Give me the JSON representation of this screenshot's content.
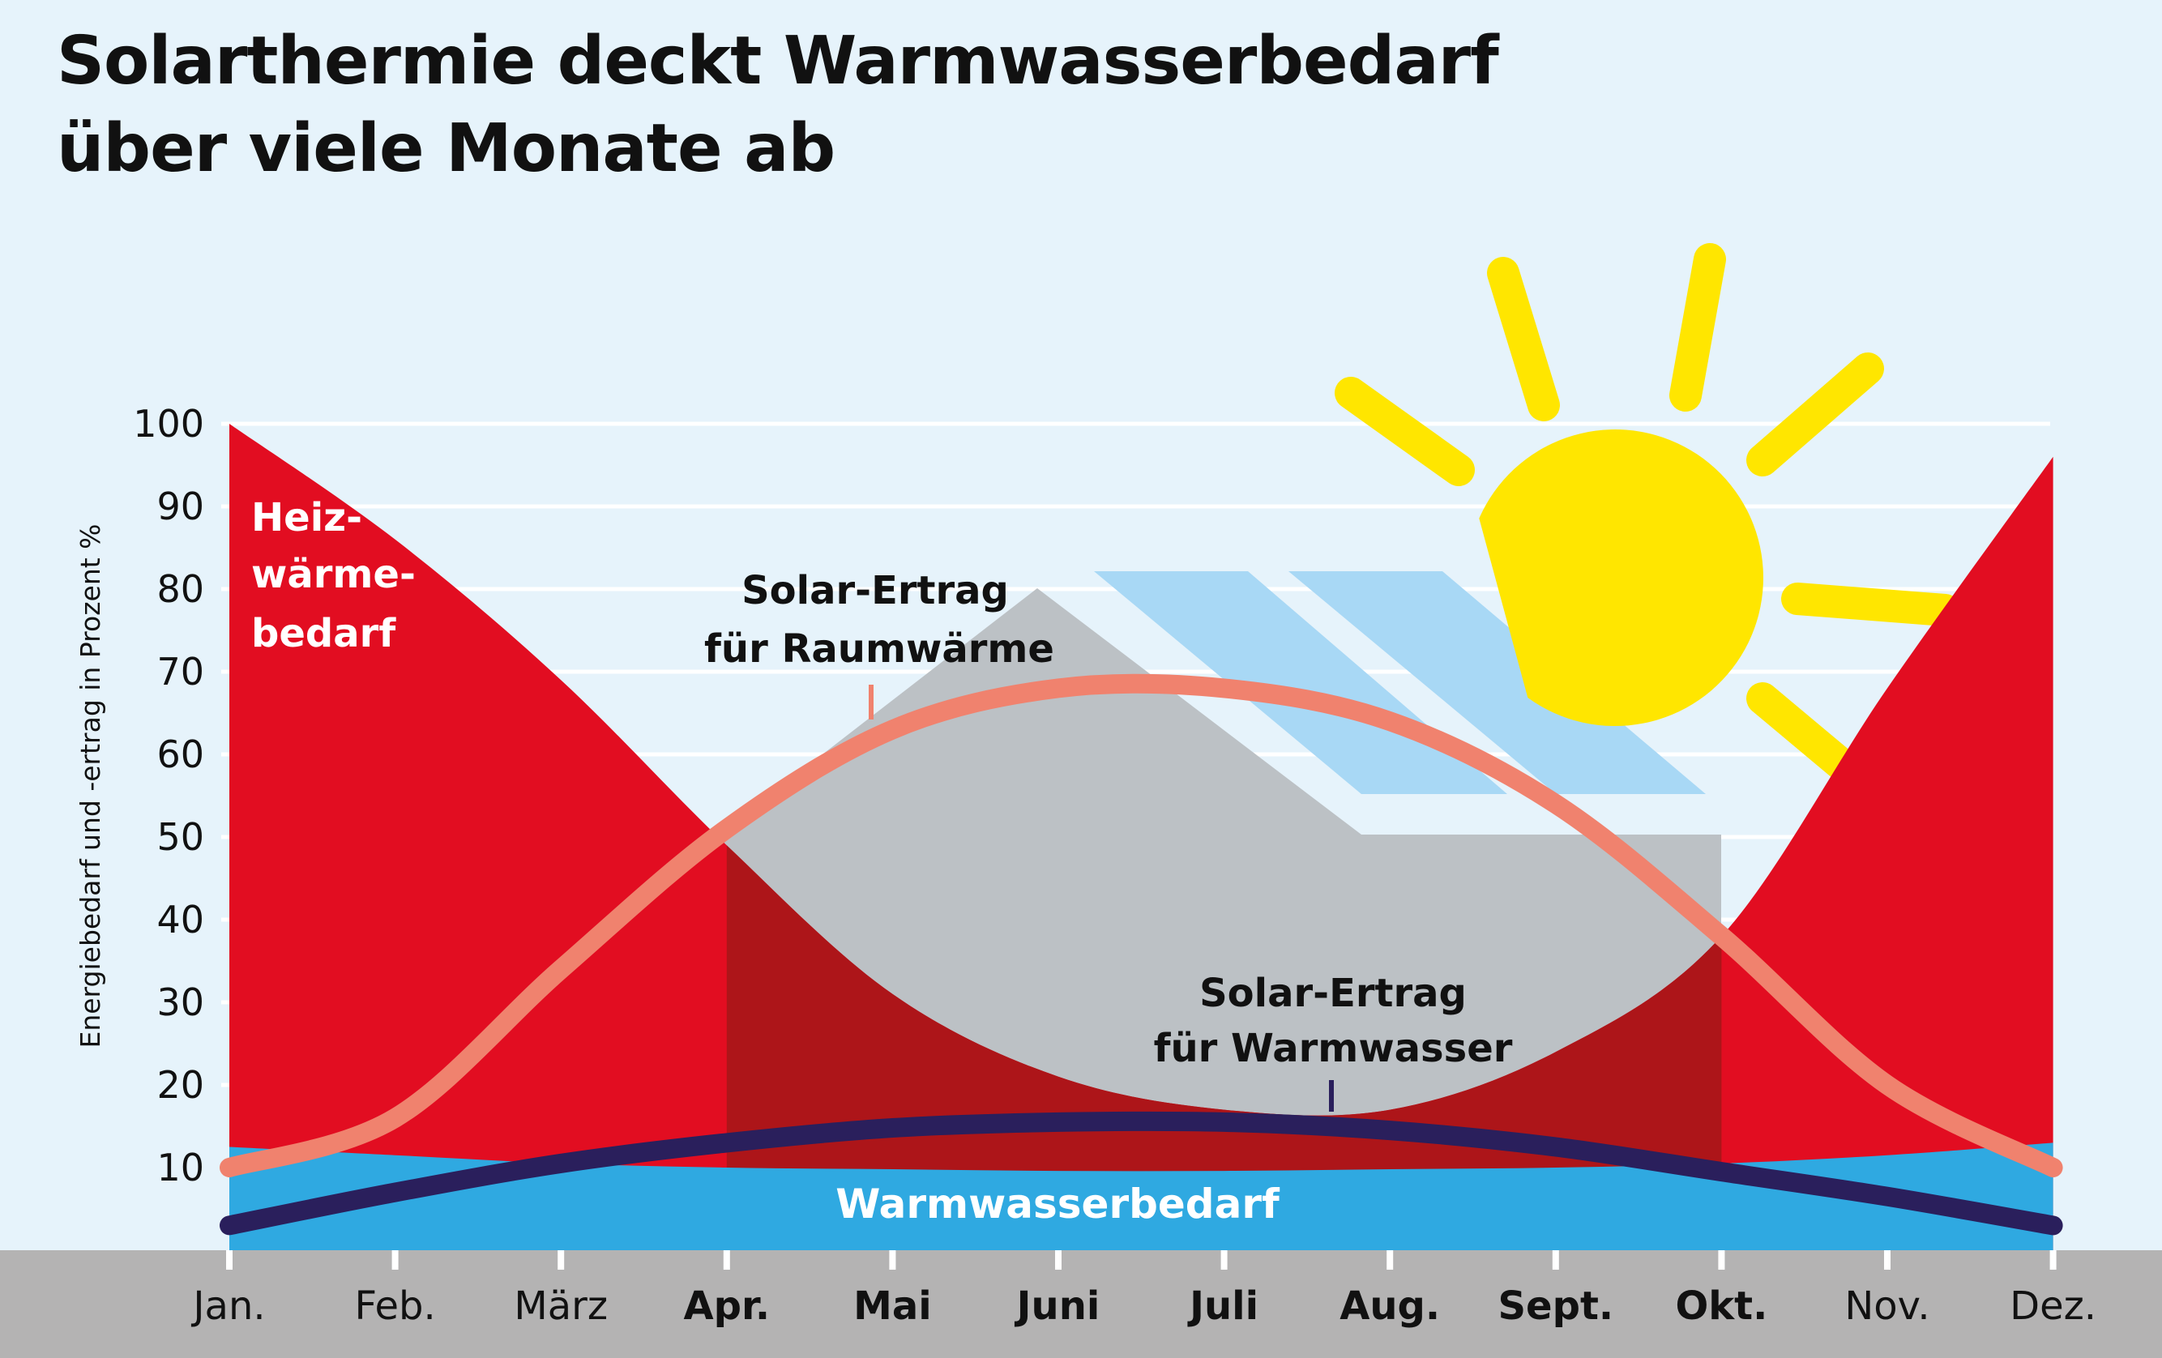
{
  "title": {
    "line1": "Solarthermie deckt Warmwasserbedarf",
    "line2": "über viele Monate ab"
  },
  "colors": {
    "background": "#e6f3fb",
    "heizwaerme": "#e20d21",
    "heizwaerme_covered": "#ad1519",
    "warmwasser": "#2fa9e1",
    "solar_raumwaerme_line": "#f0826e",
    "solar_warmwasser_line": "#2a1f5c",
    "house": "#bcc1c5",
    "sun": "#ffe600",
    "panels": "#a8d8f5",
    "axis_band": "#b4b3b3"
  },
  "labels": {
    "heizwaerme": [
      "Heiz-",
      "wärme-",
      "bedarf"
    ],
    "solar_raumwaerme": [
      "Solar-Ertrag",
      "für Raumwärme"
    ],
    "solar_warmwasser": [
      "Solar-Ertrag",
      "für Warmwasser"
    ],
    "warmwasser": "Warmwasserbedarf"
  },
  "icons": [
    "sun-icon",
    "house-icon",
    "solar-panel-icon"
  ],
  "chart_data": {
    "type": "area",
    "ylabel": "Energiebedarf und -ertrag in Prozent %",
    "ylim": [
      0,
      100
    ],
    "yticks": [
      10,
      20,
      30,
      40,
      50,
      60,
      70,
      80,
      90,
      100
    ],
    "categories": [
      "Jan.",
      "Feb.",
      "März",
      "Apr.",
      "Mai",
      "Juni",
      "Juli",
      "Aug.",
      "Sept.",
      "Okt.",
      "Nov.",
      "Dez."
    ],
    "bold_categories": [
      "Apr.",
      "Mai",
      "Juni",
      "Juli",
      "Aug.",
      "Sept.",
      "Okt."
    ],
    "grid": true,
    "series": [
      {
        "name": "Heizwärmebedarf",
        "type": "area",
        "values": [
          100,
          86,
          69,
          49,
          31,
          21,
          17,
          17,
          24,
          38,
          68,
          96
        ]
      },
      {
        "name": "Warmwasserbedarf",
        "type": "area",
        "values": [
          12.5,
          11.5,
          10.5,
          10,
          9.8,
          9.6,
          9.6,
          9.8,
          10,
          10.5,
          11.5,
          13
        ]
      },
      {
        "name": "Solar-Ertrag für Raumwärme",
        "type": "line",
        "values": [
          10,
          16,
          34,
          51,
          63,
          68,
          68,
          64,
          54,
          38,
          20,
          10
        ]
      },
      {
        "name": "Solar-Ertrag für Warmwasser",
        "type": "line",
        "values": [
          3,
          7,
          10.5,
          13,
          14.8,
          15.5,
          15.5,
          14.5,
          12.5,
          9.5,
          6.5,
          3
        ]
      }
    ]
  }
}
